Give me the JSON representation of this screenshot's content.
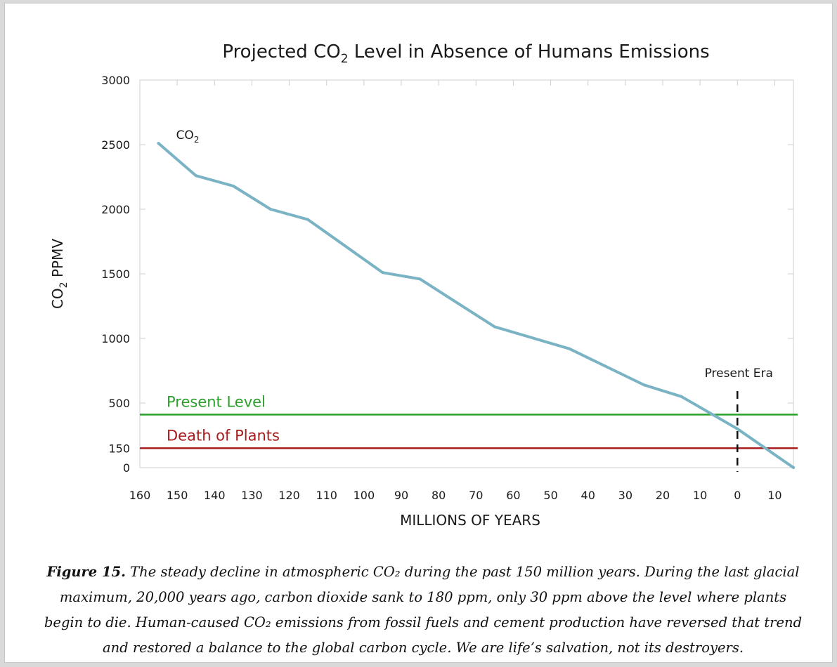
{
  "chart_data": {
    "type": "line",
    "title": "Projected CO₂ Level in Absence of Humans Emissions",
    "title_parts": {
      "before_sub": "Projected CO",
      "sub": "2",
      "after_sub": " Level in Absence of Humans Emissions"
    },
    "xlabel": "MILLIONS OF YEARS",
    "ylabel": "CO₂ PPMV",
    "ylabel_parts": {
      "before_sub": "CO",
      "sub": "2",
      "after_sub": " PPMV"
    },
    "xlim": [
      -160,
      15
    ],
    "ylim": [
      0,
      3000
    ],
    "x_ticks": [
      -160,
      -150,
      -140,
      -130,
      -120,
      -110,
      -100,
      -90,
      -80,
      -70,
      -60,
      -50,
      -40,
      -30,
      -20,
      -10,
      0,
      10
    ],
    "x_tick_labels": [
      "160",
      "150",
      "140",
      "130",
      "120",
      "110",
      "100",
      "90",
      "80",
      "70",
      "60",
      "50",
      "40",
      "30",
      "20",
      "10",
      "0",
      "10"
    ],
    "y_ticks": [
      0,
      150,
      500,
      1000,
      1500,
      2000,
      2500,
      3000
    ],
    "y_tick_labels": [
      "0",
      "150",
      "500",
      "1000",
      "1500",
      "2000",
      "2500",
      "3000"
    ],
    "grid": false,
    "series": [
      {
        "name": "CO₂",
        "label_parts": {
          "before_sub": "CO",
          "sub": "2"
        },
        "color": "#7ab3c4",
        "x": [
          -155,
          -145,
          -135,
          -125,
          -115,
          -95,
          -85,
          -65,
          -45,
          -25,
          -15,
          0,
          15
        ],
        "y": [
          2510,
          2260,
          2180,
          2000,
          1920,
          1510,
          1460,
          1090,
          920,
          640,
          550,
          300,
          0
        ]
      }
    ],
    "reference_lines": [
      {
        "label": "Present Level",
        "y": 410,
        "color": "#2aa02a"
      },
      {
        "label": "Death of Plants",
        "y": 150,
        "color": "#a81c1c"
      }
    ],
    "annotations": [
      {
        "label": "Present Era",
        "x": 0,
        "style": "dashed"
      }
    ]
  },
  "caption": {
    "figure_label": "Figure 15.",
    "text": " The steady decline in atmospheric CO₂ during the past 150 million years. During the last glacial maximum, 20,000 years ago, carbon dioxide sank to 180 ppm, only 30 ppm above the level where plants begin to die. Human-caused CO₂ emissions from fossil fuels and cement production have reversed that trend and restored a balance to the global carbon cycle. We are life’s salvation, not its destroyers."
  }
}
